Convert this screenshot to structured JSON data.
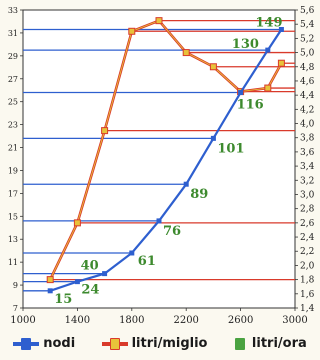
{
  "chart_data": {
    "type": "line",
    "x": [
      1200,
      1400,
      1600,
      1800,
      2000,
      2200,
      2400,
      2600,
      2800,
      2900
    ],
    "xlim": [
      1000,
      3000
    ],
    "xticks": [
      "1000",
      "1400",
      "1800",
      "2200",
      "2600",
      "3000"
    ],
    "left_axis": {
      "ylim": [
        7,
        33
      ],
      "ticks": [
        "7",
        "9",
        "11",
        "13",
        "15",
        "17",
        "19",
        "21",
        "23",
        "25",
        "27",
        "29",
        "31",
        "33"
      ]
    },
    "right_axis": {
      "ylim": [
        1.4,
        5.6
      ],
      "ticks": [
        "1,4",
        "1,6",
        "1,8",
        "2,0",
        "2,2",
        "2,4",
        "2,6",
        "2,8",
        "3,0",
        "3,2",
        "3,4",
        "3,6",
        "3,8",
        "4,0",
        "4,2",
        "4,4",
        "4,6",
        "4,8",
        "5,0",
        "5,2",
        "5,4",
        "5,6"
      ]
    },
    "grid": false,
    "series": [
      {
        "name": "nodi",
        "axis": "left",
        "color": "#2e5fcf",
        "points": [
          [
            1200,
            8.5
          ],
          [
            1400,
            9.3
          ],
          [
            1600,
            10
          ],
          [
            1800,
            11.8
          ],
          [
            2000,
            14.6
          ],
          [
            2200,
            17.8
          ],
          [
            2400,
            21.8
          ],
          [
            2600,
            25.8
          ],
          [
            2800,
            29.5
          ],
          [
            2900,
            31.3
          ]
        ],
        "labels": [
          {
            "x": 1200,
            "text": "15"
          },
          {
            "x": 1400,
            "text": "24"
          },
          {
            "x": 1600,
            "text": "40"
          },
          {
            "x": 1800,
            "text": "61"
          },
          {
            "x": 2000,
            "text": "76"
          },
          {
            "x": 2200,
            "text": "89"
          },
          {
            "x": 2400,
            "text": "101"
          },
          {
            "x": 2600,
            "text": "116"
          },
          {
            "x": 2800,
            "text": "130"
          },
          {
            "x": 2900,
            "text": "149"
          }
        ]
      },
      {
        "name": "litri/miglio",
        "axis": "right",
        "color": "#d93a2b",
        "points": [
          [
            1200,
            1.8
          ],
          [
            1400,
            2.6
          ],
          [
            1600,
            3.9
          ],
          [
            1800,
            5.3
          ],
          [
            2000,
            5.45
          ],
          [
            2200,
            5.0
          ],
          [
            2400,
            4.8
          ],
          [
            2600,
            4.45
          ],
          [
            2800,
            4.5
          ],
          [
            2900,
            4.85
          ]
        ]
      }
    ],
    "legend": [
      {
        "name": "nodi",
        "color": "#2e5fcf",
        "marker": "#2e5fcf"
      },
      {
        "name": "litri/miglio",
        "color": "#d93a2b",
        "marker": "#e8c23a"
      },
      {
        "name": "litri/ora",
        "color": "#4aa341",
        "marker": "#4aa341"
      }
    ]
  }
}
